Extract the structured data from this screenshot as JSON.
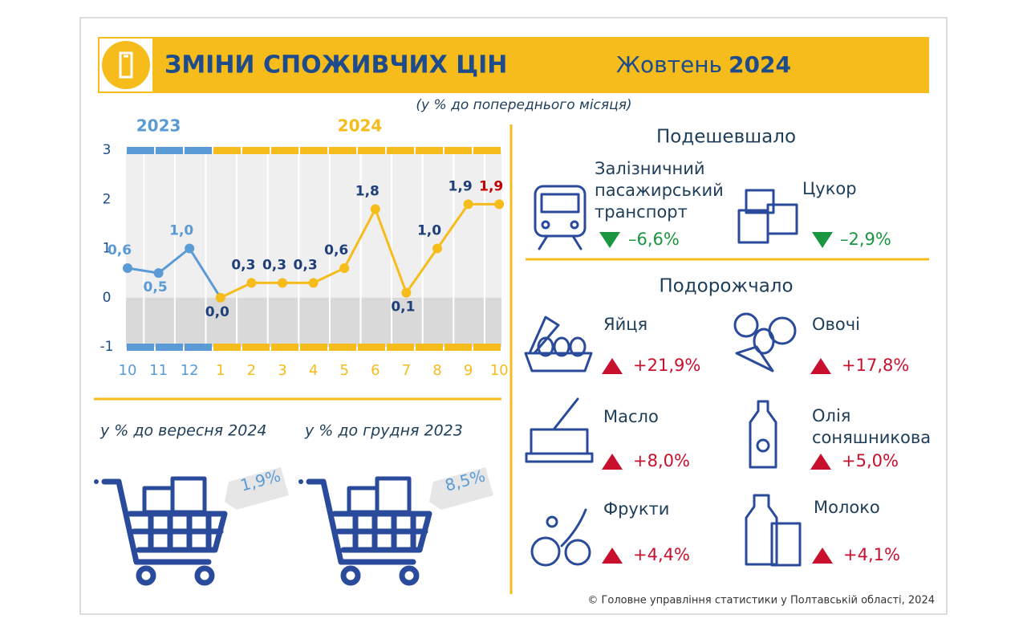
{
  "header": {
    "title": "ЗМІНИ СПОЖИВЧИХ ЦІН",
    "month": "Жовтень",
    "year": "2024",
    "subtitle": "(у % до попереднього місяця)"
  },
  "chart_data": {
    "type": "line",
    "categories": [
      "10",
      "11",
      "12",
      "1",
      "2",
      "3",
      "4",
      "5",
      "6",
      "7",
      "8",
      "9",
      "10"
    ],
    "series": [
      {
        "name": "2023",
        "color": "#5b9bd5",
        "values": [
          0.6,
          0.5,
          1.0,
          null,
          null,
          null,
          null,
          null,
          null,
          null,
          null,
          null,
          null
        ],
        "value_labels": [
          "0,6",
          "0,5",
          "1,0",
          null,
          null,
          null,
          null,
          null,
          null,
          null,
          null,
          null,
          null
        ]
      },
      {
        "name": "2024",
        "color": "#f5bc1c",
        "label_color": "#1f3f7a",
        "last_label_color": "#c00000",
        "values": [
          null,
          null,
          null,
          0.0,
          0.3,
          0.3,
          0.3,
          0.6,
          1.8,
          0.1,
          1.0,
          1.9,
          1.9
        ],
        "value_labels": [
          null,
          null,
          null,
          "0,0",
          "0,3",
          "0,3",
          "0,3",
          "0,6",
          "1,8",
          "0,1",
          "1,0",
          "1,9",
          "1,9"
        ]
      }
    ],
    "ylim": [
      -1,
      3
    ],
    "yticks": [
      -1,
      0,
      1,
      2,
      3
    ],
    "grid": true
  },
  "baskets": [
    {
      "caption": "у % до вересня 2024",
      "value": "1,9%"
    },
    {
      "caption": "у % до грудня 2023",
      "value": "8,5%"
    }
  ],
  "cheaper": {
    "heading": "Подешевшало",
    "items": [
      {
        "name_lines": [
          "Залізничний",
          "пасажирський",
          "транспорт"
        ],
        "value": "–6,6%"
      },
      {
        "name_lines": [
          "Цукор"
        ],
        "value": "–2,9%"
      }
    ]
  },
  "pricier": {
    "heading": "Подорожчало",
    "items": [
      {
        "name_lines": [
          "Яйця"
        ],
        "value": "+21,9%"
      },
      {
        "name_lines": [
          "Овочі"
        ],
        "value": "+17,8%"
      },
      {
        "name_lines": [
          "Масло"
        ],
        "value": "+8,0%"
      },
      {
        "name_lines": [
          "Олія",
          "соняшникова"
        ],
        "value": "+5,0%"
      },
      {
        "name_lines": [
          "Фрукти"
        ],
        "value": "+4,4%"
      },
      {
        "name_lines": [
          "Молоко"
        ],
        "value": "+4,1%"
      }
    ]
  },
  "footer": "© Головне управління статистики у Полтавській області, 2024"
}
